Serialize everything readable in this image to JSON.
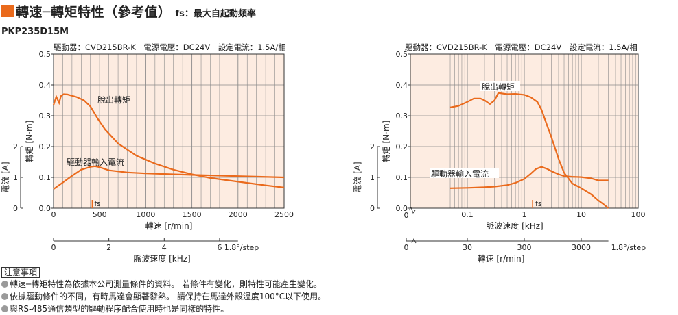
{
  "header": {
    "title": "轉速─轉矩特性（參考值）",
    "subtitle": "fs：最大自起動頻率",
    "model": "PKP235D15M",
    "accent_color": "#ea6a1c"
  },
  "notes": {
    "heading": "注意事項",
    "items": [
      "轉速─轉矩特性為依據本公司測量條件的資料。 若條件有變化，則特性可能產生變化。",
      "依據驅動條件的不同，有時馬達會顯著發熱。 請保持在馬達外殼溫度100°C以下使用。",
      "與RS-485通信類型的驅動程序配合使用時也是同樣的特性。"
    ]
  },
  "chart_data": [
    {
      "type": "line",
      "driver_info": "驅動器：CVD215BR-K　電源電壓：DC24V　設定電流：1.5A/相",
      "x_scale": "linear",
      "xlabel": "轉速 [r/min]",
      "xlim": [
        0,
        2500
      ],
      "x_ticks": [
        0,
        500,
        1000,
        1500,
        2000,
        2500
      ],
      "ylabel": "轉矩 [N·m]",
      "ylim": [
        0,
        0.5
      ],
      "y_ticks": [
        0,
        0.1,
        0.2,
        0.3,
        0.4,
        0.5
      ],
      "y2label": "電流 [A]",
      "y2_ticks": [
        0,
        1,
        2
      ],
      "x2label": "脈波速度 [kHz]",
      "x2_ticks": [
        "0",
        "2",
        "4",
        "6"
      ],
      "step_label": "1.8°/step",
      "grid": true,
      "fs_label": "fs",
      "fs_value": 420,
      "series": [
        {
          "name": "脫出轉矩",
          "color": "#ea6a1c",
          "x": [
            0,
            30,
            60,
            80,
            110,
            150,
            250,
            330,
            400,
            480,
            560,
            700,
            900,
            1100,
            1300,
            1500,
            1700,
            1900,
            2100,
            2300,
            2500
          ],
          "y": [
            0.335,
            0.362,
            0.342,
            0.364,
            0.37,
            0.369,
            0.361,
            0.35,
            0.33,
            0.29,
            0.255,
            0.21,
            0.17,
            0.145,
            0.125,
            0.11,
            0.098,
            0.09,
            0.082,
            0.074,
            0.067
          ]
        },
        {
          "name": "驅動器輸入電流",
          "color": "#ea6a1c",
          "x": [
            0,
            100,
            200,
            300,
            400,
            450,
            500,
            600,
            800,
            1000,
            1500,
            2000,
            2500
          ],
          "y": [
            0.062,
            0.083,
            0.105,
            0.125,
            0.134,
            0.136,
            0.133,
            0.123,
            0.116,
            0.113,
            0.108,
            0.104,
            0.1
          ]
        }
      ]
    },
    {
      "type": "line",
      "driver_info": "驅動器：CVD215BR-K　電源電壓：DC24V　設定電流：1.5A/相",
      "x_scale": "log",
      "xlabel": "脈波速度 [kHz]",
      "xlim": [
        0.01,
        100
      ],
      "x_ticks": [
        "0.1",
        "1",
        "10",
        "100"
      ],
      "x_tick_values": [
        0.1,
        1,
        10,
        100
      ],
      "x_zero_label": "0",
      "ylabel": "轉矩 [N·m]",
      "ylim": [
        0,
        0.5
      ],
      "y_ticks": [
        0,
        0.1,
        0.2,
        0.3,
        0.4,
        0.5
      ],
      "y2label": "電流 [A]",
      "y2_ticks": [
        0,
        1,
        2
      ],
      "x2label": "轉速 [r/min]",
      "x2_ticks": [
        "0",
        "30",
        "300",
        "3000"
      ],
      "x2_tick_positions_khz": [
        0.1,
        1,
        10
      ],
      "step_label": "1.8°/step",
      "grid": true,
      "fs_label": "fs",
      "fs_value": 1.4,
      "series": [
        {
          "name": "脫出轉矩",
          "color": "#ea6a1c",
          "x": [
            0.05,
            0.07,
            0.1,
            0.13,
            0.17,
            0.2,
            0.25,
            0.3,
            0.35,
            0.5,
            0.7,
            1,
            1.3,
            1.7,
            2,
            2.5,
            3,
            4,
            5,
            7,
            10,
            15,
            20,
            25,
            30
          ],
          "y": [
            0.327,
            0.332,
            0.345,
            0.356,
            0.356,
            0.35,
            0.338,
            0.35,
            0.374,
            0.37,
            0.371,
            0.368,
            0.36,
            0.345,
            0.32,
            0.27,
            0.23,
            0.16,
            0.115,
            0.08,
            0.065,
            0.045,
            0.025,
            0.012,
            0.0
          ]
        },
        {
          "name": "驅動器輸入電流",
          "color": "#ea6a1c",
          "x": [
            0.05,
            0.1,
            0.2,
            0.3,
            0.5,
            0.7,
            1,
            1.3,
            1.6,
            2,
            2.5,
            3,
            4,
            5,
            7,
            10,
            15,
            20,
            30
          ],
          "y": [
            0.065,
            0.066,
            0.068,
            0.07,
            0.075,
            0.082,
            0.095,
            0.112,
            0.127,
            0.134,
            0.128,
            0.12,
            0.11,
            0.104,
            0.102,
            0.101,
            0.097,
            0.09,
            0.09
          ]
        }
      ]
    }
  ]
}
